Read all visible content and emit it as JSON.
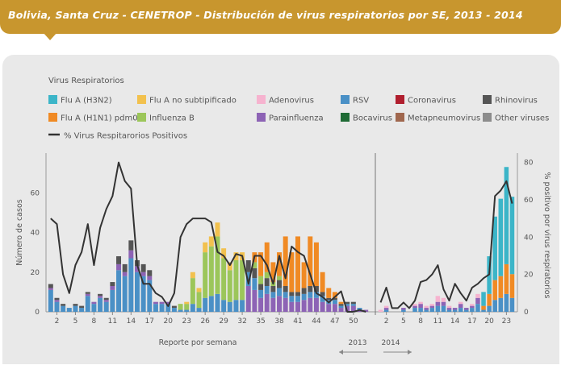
{
  "header": {
    "title": "Bolivia, Santa Cruz - CENETROP - Distribución de virus respiratorios por SE, 2013 - 2014"
  },
  "chart_data": {
    "type": "bar",
    "legend_title": "Virus Respiratorios",
    "legend": [
      {
        "name": "Flu A (H3N2)",
        "color": "#3cb5c8"
      },
      {
        "name": "Flu A no subtipificado",
        "color": "#f2c14e"
      },
      {
        "name": "Adenovirus",
        "color": "#f6b3cf"
      },
      {
        "name": "RSV",
        "color": "#4a90c6"
      },
      {
        "name": "Coronavirus",
        "color": "#b01e2e"
      },
      {
        "name": "Rhinovirus",
        "color": "#555555"
      },
      {
        "name": "Flu A (H1N1) pdm09",
        "color": "#f08a24"
      },
      {
        "name": "Influenza B",
        "color": "#9cc65a"
      },
      {
        "name": "Parainfluenza",
        "color": "#8d63b5"
      },
      {
        "name": "Bocavirus",
        "color": "#1f6b35"
      },
      {
        "name": "Metapneumovirus",
        "color": "#a0674e"
      },
      {
        "name": "Other viruses",
        "color": "#8c8c8c"
      },
      {
        "name": "% Virus Respitarorios Positivos",
        "color": "#333333",
        "kind": "line"
      }
    ],
    "ylabel": "Número de casos",
    "y2label": "% positivo por virus respiratorios",
    "xlabel": "Reporte por semana",
    "ylim": [
      0,
      80
    ],
    "y2lim": [
      0,
      85
    ],
    "yticks": [
      0,
      20,
      40,
      60
    ],
    "y2ticks": [
      0,
      20,
      40,
      60,
      80
    ],
    "year_labels": [
      "2013",
      "2014"
    ],
    "periods": [
      {
        "year": "2013",
        "weeks": 52,
        "xticks": [
          2,
          5,
          8,
          11,
          14,
          17,
          20,
          23,
          26,
          29,
          32,
          35,
          38,
          41,
          44,
          47,
          50
        ],
        "totals": [
          14,
          7,
          4,
          2,
          4,
          3,
          10,
          5,
          9,
          7,
          15,
          28,
          24,
          36,
          26,
          24,
          21,
          5,
          5,
          5,
          3,
          4,
          5,
          20,
          12,
          35,
          38,
          45,
          32,
          25,
          30,
          30,
          26,
          30,
          30,
          35,
          25,
          30,
          38,
          30,
          38,
          25,
          38,
          35,
          20,
          12,
          10,
          5,
          5,
          5,
          2,
          1
        ],
        "h1n1": [
          0,
          0,
          0,
          0,
          0,
          0,
          0,
          0,
          0,
          0,
          0,
          0,
          0,
          0,
          0,
          0,
          0,
          0,
          0,
          0,
          0,
          0,
          0,
          0,
          0,
          0,
          0,
          0,
          0,
          0,
          0,
          0,
          0,
          5,
          12,
          15,
          10,
          12,
          25,
          20,
          28,
          13,
          25,
          22,
          10,
          5,
          3,
          1,
          0,
          0,
          0,
          0
        ],
        "fluB": [
          0,
          0,
          0,
          0,
          0,
          0,
          0,
          0,
          0,
          0,
          0,
          0,
          0,
          0,
          0,
          0,
          0,
          0,
          0,
          0,
          0,
          0,
          0,
          0,
          0,
          0,
          0,
          0,
          0,
          0,
          0,
          0,
          0,
          3,
          4,
          3,
          2,
          2,
          0,
          0,
          0,
          0,
          0,
          0,
          0,
          0,
          0,
          0,
          0,
          0,
          0,
          0
        ],
        "pct": [
          50,
          47,
          20,
          10,
          25,
          32,
          47,
          25,
          45,
          55,
          62,
          80,
          70,
          66,
          25,
          15,
          15,
          10,
          8,
          3,
          10,
          40,
          47,
          50,
          50,
          50,
          48,
          32,
          30,
          25,
          31,
          30,
          15,
          30,
          30,
          25,
          15,
          30,
          18,
          35,
          32,
          30,
          20,
          10,
          8,
          5,
          8,
          11,
          0,
          0,
          1,
          0
        ]
      },
      {
        "year": "2014",
        "weeks": 24,
        "xticks": [
          2,
          5,
          8,
          11,
          14,
          17,
          20,
          23
        ],
        "totals": [
          1,
          3,
          0,
          0,
          2,
          0,
          4,
          5,
          3,
          4,
          8,
          7,
          3,
          2,
          5,
          2,
          4,
          9,
          10,
          28,
          48,
          57,
          73,
          58
        ],
        "pct": [
          5,
          13,
          2,
          2,
          5,
          2,
          6,
          16,
          17,
          20,
          25,
          12,
          6,
          15,
          10,
          6,
          13,
          15,
          18,
          20,
          62,
          65,
          70,
          58
        ]
      }
    ]
  }
}
